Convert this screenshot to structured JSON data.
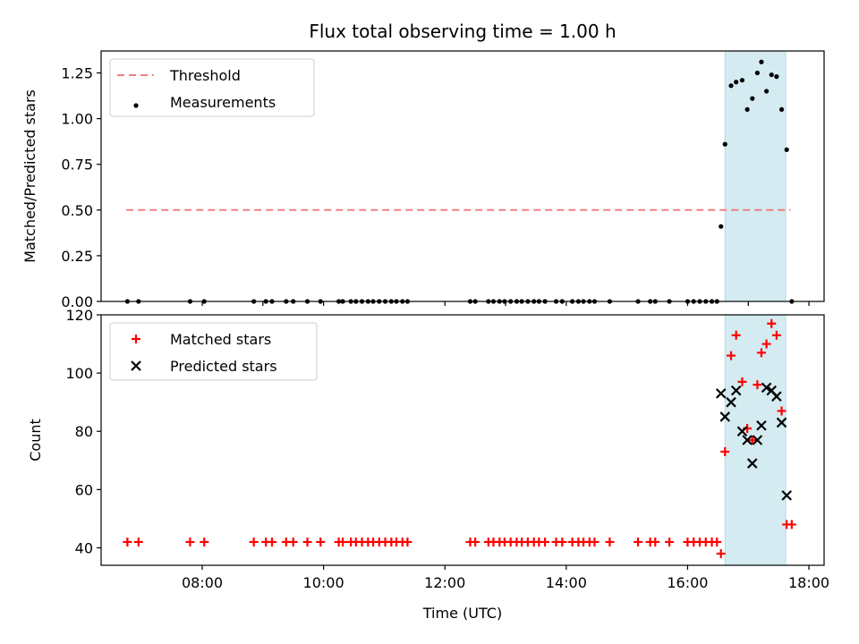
{
  "chart_data": [
    {
      "type": "scatter",
      "title": "Flux total observing time = 1.00 h",
      "xlabel": "",
      "ylabel": "Matched/Predicted stars",
      "xlim": [
        "06:20",
        "18:15"
      ],
      "ylim": [
        0,
        1.37
      ],
      "yticks": [
        "0.00",
        "0.25",
        "0.50",
        "0.75",
        "1.00",
        "1.25"
      ],
      "legend": {
        "position": "top-left",
        "entries": [
          "Threshold",
          "Measurements"
        ]
      },
      "highlight": {
        "x": [
          "16:37",
          "17:37"
        ],
        "color": "#d3ebf1"
      },
      "threshold": {
        "name": "Threshold",
        "y": 0.5,
        "x": [
          "06:45",
          "17:42"
        ],
        "color": "#f08080"
      },
      "series": [
        {
          "name": "Measurements",
          "color": "#000000",
          "points": [
            [
              "06:46",
              0
            ],
            [
              "06:57",
              0
            ],
            [
              "07:48",
              0
            ],
            [
              "08:02",
              0
            ],
            [
              "08:51",
              0
            ],
            [
              "09:03",
              0
            ],
            [
              "09:09",
              0
            ],
            [
              "09:23",
              0
            ],
            [
              "09:30",
              0
            ],
            [
              "09:44",
              0
            ],
            [
              "09:57",
              0
            ],
            [
              "10:15",
              0
            ],
            [
              "10:19",
              0
            ],
            [
              "10:27",
              0
            ],
            [
              "10:32",
              0
            ],
            [
              "10:38",
              0
            ],
            [
              "10:44",
              0
            ],
            [
              "10:49",
              0
            ],
            [
              "10:55",
              0
            ],
            [
              "11:01",
              0
            ],
            [
              "11:07",
              0
            ],
            [
              "11:12",
              0
            ],
            [
              "11:18",
              0
            ],
            [
              "11:23",
              0
            ],
            [
              "12:25",
              0
            ],
            [
              "12:30",
              0
            ],
            [
              "12:43",
              0
            ],
            [
              "12:48",
              0
            ],
            [
              "12:54",
              0
            ],
            [
              "12:59",
              0
            ],
            [
              "13:05",
              0
            ],
            [
              "13:11",
              0
            ],
            [
              "13:16",
              0
            ],
            [
              "13:22",
              0
            ],
            [
              "13:28",
              0
            ],
            [
              "13:33",
              0
            ],
            [
              "13:39",
              0
            ],
            [
              "13:50",
              0
            ],
            [
              "13:56",
              0
            ],
            [
              "14:06",
              0
            ],
            [
              "14:12",
              0
            ],
            [
              "14:17",
              0
            ],
            [
              "14:23",
              0
            ],
            [
              "14:28",
              0
            ],
            [
              "14:43",
              0
            ],
            [
              "15:11",
              0
            ],
            [
              "15:23",
              0
            ],
            [
              "15:28",
              0
            ],
            [
              "15:42",
              0
            ],
            [
              "16:00",
              0
            ],
            [
              "16:06",
              0
            ],
            [
              "16:12",
              0
            ],
            [
              "16:18",
              0
            ],
            [
              "16:24",
              0
            ],
            [
              "16:29",
              0
            ],
            [
              "16:33",
              0.41
            ],
            [
              "16:37",
              0.86
            ],
            [
              "16:43",
              1.18
            ],
            [
              "16:48",
              1.2
            ],
            [
              "16:54",
              1.21
            ],
            [
              "16:59",
              1.05
            ],
            [
              "17:04",
              1.11
            ],
            [
              "17:09",
              1.25
            ],
            [
              "17:13",
              1.31
            ],
            [
              "17:18",
              1.15
            ],
            [
              "17:23",
              1.24
            ],
            [
              "17:28",
              1.23
            ],
            [
              "17:33",
              1.05
            ],
            [
              "17:38",
              0.83
            ],
            [
              "17:43",
              0
            ]
          ]
        }
      ]
    },
    {
      "type": "scatter",
      "title": "",
      "xlabel": "Time (UTC)",
      "ylabel": "Count",
      "xlim": [
        "06:20",
        "18:15"
      ],
      "ylim": [
        34,
        120
      ],
      "yticks": [
        "40",
        "60",
        "80",
        "100",
        "120"
      ],
      "xticks": [
        "08:00",
        "10:00",
        "12:00",
        "14:00",
        "16:00",
        "18:00"
      ],
      "legend": {
        "position": "top-left",
        "entries": [
          "Matched stars",
          "Predicted stars"
        ]
      },
      "highlight": {
        "x": [
          "16:37",
          "17:37"
        ],
        "color": "#d3ebf1"
      },
      "series": [
        {
          "name": "Matched stars",
          "marker": "plus",
          "color": "#ff0000",
          "points": [
            [
              "06:46",
              42
            ],
            [
              "06:57",
              42
            ],
            [
              "07:48",
              42
            ],
            [
              "08:02",
              42
            ],
            [
              "08:51",
              42
            ],
            [
              "09:03",
              42
            ],
            [
              "09:09",
              42
            ],
            [
              "09:23",
              42
            ],
            [
              "09:30",
              42
            ],
            [
              "09:44",
              42
            ],
            [
              "09:57",
              42
            ],
            [
              "10:15",
              42
            ],
            [
              "10:19",
              42
            ],
            [
              "10:27",
              42
            ],
            [
              "10:32",
              42
            ],
            [
              "10:38",
              42
            ],
            [
              "10:44",
              42
            ],
            [
              "10:49",
              42
            ],
            [
              "10:55",
              42
            ],
            [
              "11:01",
              42
            ],
            [
              "11:07",
              42
            ],
            [
              "11:12",
              42
            ],
            [
              "11:18",
              42
            ],
            [
              "11:23",
              42
            ],
            [
              "12:25",
              42
            ],
            [
              "12:30",
              42
            ],
            [
              "12:43",
              42
            ],
            [
              "12:48",
              42
            ],
            [
              "12:54",
              42
            ],
            [
              "12:59",
              42
            ],
            [
              "13:05",
              42
            ],
            [
              "13:11",
              42
            ],
            [
              "13:16",
              42
            ],
            [
              "13:22",
              42
            ],
            [
              "13:28",
              42
            ],
            [
              "13:33",
              42
            ],
            [
              "13:39",
              42
            ],
            [
              "13:50",
              42
            ],
            [
              "13:56",
              42
            ],
            [
              "14:06",
              42
            ],
            [
              "14:12",
              42
            ],
            [
              "14:17",
              42
            ],
            [
              "14:23",
              42
            ],
            [
              "14:28",
              42
            ],
            [
              "14:43",
              42
            ],
            [
              "15:11",
              42
            ],
            [
              "15:23",
              42
            ],
            [
              "15:28",
              42
            ],
            [
              "15:42",
              42
            ],
            [
              "16:00",
              42
            ],
            [
              "16:06",
              42
            ],
            [
              "16:12",
              42
            ],
            [
              "16:18",
              42
            ],
            [
              "16:24",
              42
            ],
            [
              "16:29",
              42
            ],
            [
              "16:33",
              38
            ],
            [
              "16:37",
              73
            ],
            [
              "16:43",
              106
            ],
            [
              "16:48",
              113
            ],
            [
              "16:54",
              97
            ],
            [
              "16:59",
              81
            ],
            [
              "17:04",
              77
            ],
            [
              "17:09",
              96
            ],
            [
              "17:13",
              107
            ],
            [
              "17:18",
              110
            ],
            [
              "17:23",
              117
            ],
            [
              "17:28",
              113
            ],
            [
              "17:33",
              87
            ],
            [
              "17:38",
              48
            ],
            [
              "17:43",
              48
            ]
          ]
        },
        {
          "name": "Predicted stars",
          "marker": "x",
          "color": "#000000",
          "points": [
            [
              "16:33",
              93
            ],
            [
              "16:37",
              85
            ],
            [
              "16:43",
              90
            ],
            [
              "16:48",
              94
            ],
            [
              "16:54",
              80
            ],
            [
              "16:59",
              77
            ],
            [
              "17:04",
              69
            ],
            [
              "17:09",
              77
            ],
            [
              "17:13",
              82
            ],
            [
              "17:18",
              95
            ],
            [
              "17:23",
              94
            ],
            [
              "17:28",
              92
            ],
            [
              "17:33",
              83
            ],
            [
              "17:38",
              58
            ]
          ]
        }
      ]
    }
  ]
}
